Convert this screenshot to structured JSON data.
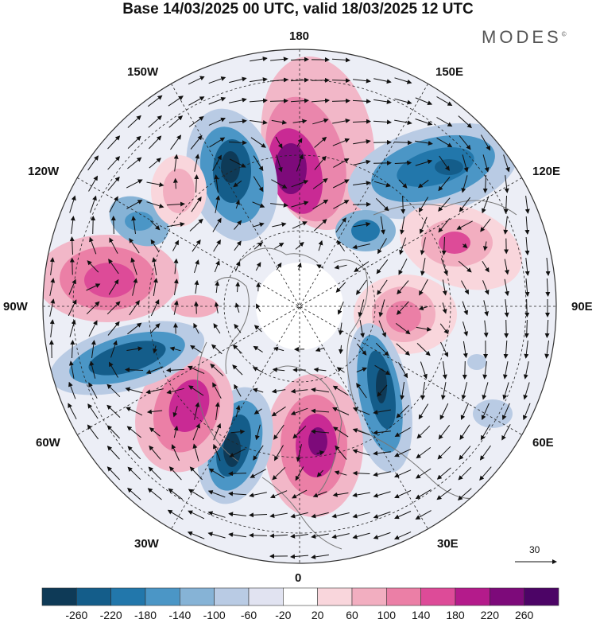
{
  "title": "Base 14/03/2025 00 UTC, valid 18/03/2025 12 UTC",
  "brand": "MODES",
  "brand_mark": "©",
  "longitude_labels": {
    "lon_180": "180",
    "lon_150e": "150E",
    "lon_120e": "120E",
    "lon_90e": "90E",
    "lon_60e": "60E",
    "lon_30e": "30E",
    "lon_0": "0",
    "lon_30w": "30W",
    "lon_60w": "60W",
    "lon_90w": "90W",
    "lon_120w": "120W",
    "lon_150w": "150W"
  },
  "reference_vector": {
    "label": "30"
  },
  "colorbar": {
    "labels": [
      "-260",
      "-220",
      "-180",
      "-140",
      "-100",
      "-60",
      "-20",
      "20",
      "60",
      "100",
      "140",
      "180",
      "220",
      "260"
    ],
    "colors": [
      "#0e3a57",
      "#145d8a",
      "#2277ab",
      "#4b96c6",
      "#86b3d6",
      "#b9cbe4",
      "#e1e3f1",
      "#ffffff",
      "#f9d6dc",
      "#f2aec0",
      "#eb7fa6",
      "#dd4b98",
      "#b41b8b",
      "#7d0a7a",
      "#4c0466"
    ]
  },
  "anomaly_cells": [
    {
      "name": "anomaly-high-north-pacific",
      "sign": "positive",
      "strength": 0.95
    },
    {
      "name": "anomaly-low-east-siberia",
      "sign": "negative",
      "strength": 0.85
    },
    {
      "name": "anomaly-high-central-asia",
      "sign": "positive",
      "strength": 0.7
    },
    {
      "name": "anomaly-high-west-siberia",
      "sign": "positive",
      "strength": 0.65
    },
    {
      "name": "anomaly-low-russia",
      "sign": "negative",
      "strength": 0.8
    },
    {
      "name": "anomaly-high-europe",
      "sign": "positive",
      "strength": 0.95
    },
    {
      "name": "anomaly-low-north-atlantic",
      "sign": "negative",
      "strength": 0.9
    },
    {
      "name": "anomaly-high-west-atlantic",
      "sign": "positive",
      "strength": 0.85
    },
    {
      "name": "anomaly-low-eastern-north-america",
      "sign": "negative",
      "strength": 0.8
    },
    {
      "name": "anomaly-high-central-north-america",
      "sign": "positive",
      "strength": 0.75
    },
    {
      "name": "anomaly-low-alaska-gulf",
      "sign": "negative",
      "strength": 0.55
    },
    {
      "name": "anomaly-high-northeast-pacific",
      "sign": "positive",
      "strength": 0.45
    },
    {
      "name": "anomaly-low-northwest-pacific",
      "sign": "negative",
      "strength": 0.85
    }
  ]
}
